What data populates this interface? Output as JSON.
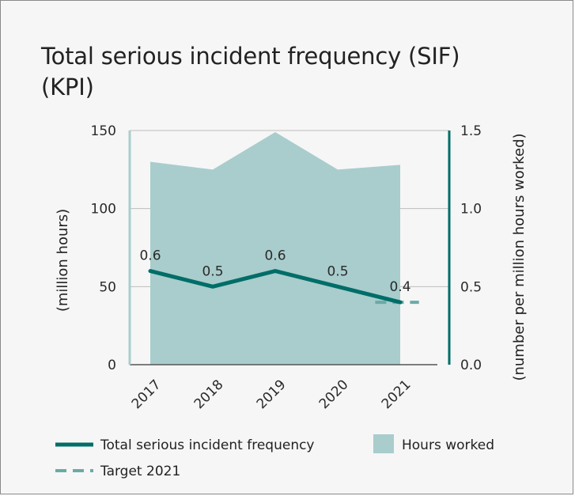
{
  "chart_data": {
    "type": "line+area",
    "title_line1": "Total serious incident frequency (SIF)",
    "title_line2": "(KPI)",
    "categories": [
      "2017",
      "2018",
      "2019",
      "2020",
      "2021"
    ],
    "left_axis": {
      "label": "(million hours)",
      "ylim": [
        0,
        150
      ],
      "ticks": [
        0,
        50,
        100,
        150
      ],
      "tick_labels": [
        "0",
        "50",
        "100",
        "150"
      ]
    },
    "right_axis": {
      "label": "(number per million hours worked)",
      "ylim": [
        0,
        1.5
      ],
      "ticks": [
        0,
        0.5,
        1.0,
        1.5
      ],
      "tick_labels": [
        "0.0",
        "0.5",
        "1.0",
        "1.5"
      ]
    },
    "series": [
      {
        "name": "Hours worked",
        "type": "area",
        "axis": "left",
        "values": [
          130,
          125,
          149,
          125,
          128
        ]
      },
      {
        "name": "Total serious incident frequency",
        "type": "line",
        "axis": "right",
        "values": [
          0.6,
          0.5,
          0.6,
          0.5,
          0.4
        ],
        "data_labels": [
          "0.6",
          "0.5",
          "0.6",
          "0.5",
          "0.4"
        ]
      },
      {
        "name": "Target 2021",
        "type": "dashed-line",
        "axis": "right",
        "value": 0.4,
        "x_from": 3.6,
        "x_to": 4.3
      }
    ],
    "legend": [
      {
        "label": "Total serious incident frequency",
        "kind": "line"
      },
      {
        "label": "Hours worked",
        "kind": "area"
      },
      {
        "label": "Target 2021",
        "kind": "dashed"
      }
    ],
    "colors": {
      "line": "#006d68",
      "area": "#a8cdcc",
      "target": "#6aaaa7",
      "left_axis": "#a8cdcc",
      "right_axis": "#006d68",
      "grid": "#bdbdbd"
    }
  }
}
